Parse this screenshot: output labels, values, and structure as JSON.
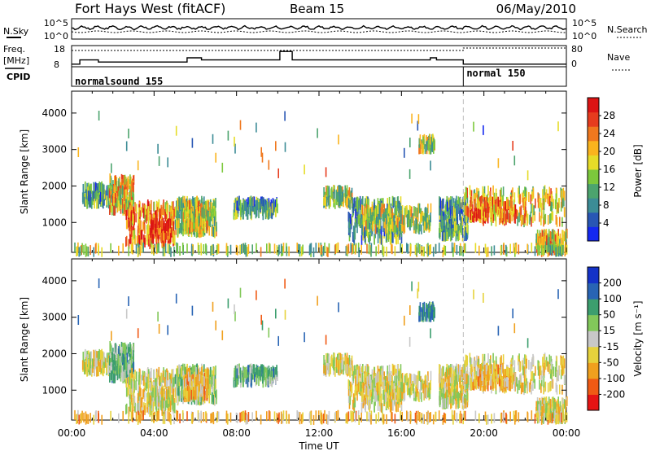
{
  "header": {
    "radar": "Fort Hays West (fitACF)",
    "beam": "Beam 15",
    "date": "06/May/2010"
  },
  "panels": {
    "nsky_label": "N.Sky",
    "nsearch_label": "N.Search",
    "counts_ticks": [
      "10^5",
      "10^0"
    ],
    "freq_label": "Freq.",
    "freq_unit": "[MHz]",
    "freq_ticks": [
      "18",
      "8"
    ],
    "nave_label": "Nave",
    "nave_ticks": [
      "80",
      "0"
    ],
    "cpid_label": "CPID",
    "cpid_segments": [
      {
        "name": "normalsound 155",
        "start_hour": 0
      },
      {
        "name": "normal 150",
        "start_hour": 19
      }
    ]
  },
  "colorbars": {
    "power": {
      "label": "Power [dB]",
      "ticks": [
        "4",
        "8",
        "12",
        "16",
        "20",
        "24",
        "28"
      ],
      "colors": [
        "#1428f0",
        "#2856b4",
        "#3c8c96",
        "#4ca46e",
        "#7cc83c",
        "#e6dc28",
        "#fab41e",
        "#f0781e",
        "#e63c1e",
        "#dc1414"
      ]
    },
    "velocity": {
      "label": "Velocity [m s⁻¹]",
      "ticks": [
        "-200",
        "-100",
        "-50",
        "-15",
        "15",
        "50",
        "100",
        "200"
      ],
      "colors": [
        "#e61414",
        "#f05a14",
        "#f0a01e",
        "#e6d23c",
        "#c8c8c8",
        "#82c85a",
        "#3c9e6e",
        "#2864b4",
        "#1432c8"
      ]
    }
  },
  "axes": {
    "xlabel": "Time UT",
    "ylabel": "Slant Range [km]",
    "x_ticks": [
      "00:00",
      "04:00",
      "08:00",
      "12:00",
      "16:00",
      "20:00",
      "00:00"
    ],
    "y_ticks": [
      "1000",
      "2000",
      "3000",
      "4000"
    ]
  },
  "chart_data": {
    "type": "heatmap",
    "title": "Fort Hays West (fitACF) Beam 15 06/May/2010",
    "xlabel": "Time UT",
    "ylabel": "Slant Range [km]",
    "xlim": [
      0,
      24
    ],
    "ylim": [
      180,
      4600
    ],
    "cpid_change_hour": 19,
    "scatter_clusters": [
      {
        "t": [
          0.5,
          1.8
        ],
        "r": [
          1500,
          2000
        ],
        "power": 12,
        "velocity": -15
      },
      {
        "t": [
          1.8,
          3.0
        ],
        "r": [
          1300,
          2200
        ],
        "power": 20,
        "velocity": 50
      },
      {
        "t": [
          2.6,
          5.0
        ],
        "r": [
          400,
          1500
        ],
        "power": 24,
        "velocity": -15
      },
      {
        "t": [
          3.8,
          4.8
        ],
        "r": [
          500,
          1000
        ],
        "power": 28,
        "velocity": -15
      },
      {
        "t": [
          5.0,
          7.0
        ],
        "r": [
          700,
          1600
        ],
        "power": 16,
        "velocity": 15
      },
      {
        "t": [
          5.4,
          6.6
        ],
        "r": [
          800,
          1500
        ],
        "power": 20,
        "velocity": -50
      },
      {
        "t": [
          7.8,
          10.0
        ],
        "r": [
          1200,
          1600
        ],
        "power": 12,
        "velocity": 50
      },
      {
        "t": [
          12.2,
          13.6
        ],
        "r": [
          1500,
          1900
        ],
        "power": 16,
        "velocity": -15
      },
      {
        "t": [
          13.4,
          16.0
        ],
        "r": [
          500,
          1600
        ],
        "power": 12,
        "velocity": -15
      },
      {
        "t": [
          14.0,
          17.4
        ],
        "r": [
          800,
          1400
        ],
        "power": 16,
        "velocity": -15
      },
      {
        "t": [
          16.8,
          17.6
        ],
        "r": [
          3000,
          3300
        ],
        "power": 16,
        "velocity": 100
      },
      {
        "t": [
          17.8,
          19.2
        ],
        "r": [
          600,
          1600
        ],
        "power": 12,
        "velocity": -15
      },
      {
        "t": [
          19.0,
          23.9
        ],
        "r": [
          1000,
          1900
        ],
        "power": 20,
        "velocity": -15
      },
      {
        "t": [
          19.3,
          21.5
        ],
        "r": [
          1100,
          1600
        ],
        "power": 24,
        "velocity": -50
      },
      {
        "t": [
          22.5,
          24.0
        ],
        "r": [
          200,
          700
        ],
        "power": 20,
        "velocity": -15
      },
      {
        "t": [
          0.0,
          24.0
        ],
        "r": [
          180,
          320
        ],
        "power": 16,
        "velocity": -50
      }
    ]
  }
}
